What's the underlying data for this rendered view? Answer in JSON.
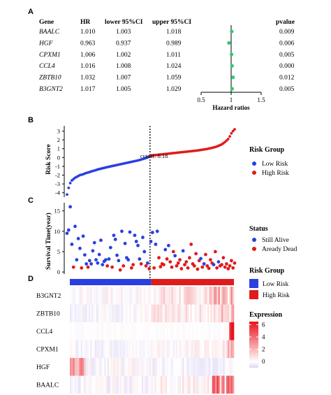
{
  "panel_labels": {
    "A": "A",
    "B": "B",
    "C": "C",
    "D": "D"
  },
  "chart_data": [
    {
      "type": "table",
      "panel": "A",
      "columns": [
        "Gene",
        "HR",
        "lower 95%CI",
        "upper 95%CI",
        "pvalue"
      ],
      "rows": [
        {
          "gene": "BAALC",
          "hr": "1.010",
          "lower": "1.003",
          "upper": "1.018",
          "pvalue": "0.009"
        },
        {
          "gene": "HGF",
          "hr": "0.963",
          "lower": "0.937",
          "upper": "0.989",
          "pvalue": "0.006"
        },
        {
          "gene": "CPXM1",
          "hr": "1.006",
          "lower": "1.002",
          "upper": "1.011",
          "pvalue": "0.005"
        },
        {
          "gene": "CCL4",
          "hr": "1.016",
          "lower": "1.008",
          "upper": "1.024",
          "pvalue": "0.000"
        },
        {
          "gene": "ZBTB10",
          "hr": "1.032",
          "lower": "1.007",
          "upper": "1.059",
          "pvalue": "0.012"
        },
        {
          "gene": "B3GNT2",
          "hr": "1.017",
          "lower": "1.005",
          "upper": "1.029",
          "pvalue": "0.005"
        }
      ],
      "forest": {
        "xlabel": "Hazard ratios",
        "xlim": [
          0.5,
          1.5
        ],
        "ticks": [
          "0.5",
          "1",
          "1.5"
        ],
        "point_color": "#2ecc71"
      }
    },
    {
      "type": "scatter",
      "panel": "B",
      "ylabel": "Risk Score",
      "ylim": [
        -4.5,
        3.6
      ],
      "yticks": [
        "-4",
        "-3",
        "-2",
        "-1",
        "0",
        "1",
        "2",
        "3"
      ],
      "cutoff_label": "cutoff: 0.18",
      "cutoff_value": 0.18,
      "n_low": 52,
      "n_high": 53,
      "low_values": [
        -4.2,
        -3.45,
        -2.9,
        -2.6,
        -2.45,
        -2.3,
        -2.2,
        -2.1,
        -2.0,
        -1.95,
        -1.9,
        -1.82,
        -1.75,
        -1.7,
        -1.65,
        -1.58,
        -1.52,
        -1.48,
        -1.42,
        -1.36,
        -1.31,
        -1.27,
        -1.22,
        -1.18,
        -1.13,
        -1.09,
        -1.05,
        -1.01,
        -0.97,
        -0.93,
        -0.89,
        -0.85,
        -0.81,
        -0.77,
        -0.73,
        -0.69,
        -0.65,
        -0.61,
        -0.57,
        -0.53,
        -0.49,
        -0.45,
        -0.41,
        -0.37,
        -0.33,
        -0.28,
        -0.23,
        -0.17,
        -0.11,
        -0.05,
        0.02,
        0.1
      ],
      "high_values": [
        0.18,
        0.22,
        0.25,
        0.28,
        0.3,
        0.32,
        0.34,
        0.36,
        0.38,
        0.4,
        0.42,
        0.44,
        0.46,
        0.48,
        0.5,
        0.52,
        0.54,
        0.56,
        0.58,
        0.6,
        0.62,
        0.64,
        0.66,
        0.68,
        0.7,
        0.72,
        0.74,
        0.76,
        0.78,
        0.8,
        0.83,
        0.86,
        0.89,
        0.92,
        0.95,
        0.98,
        1.02,
        1.06,
        1.1,
        1.15,
        1.2,
        1.26,
        1.33,
        1.41,
        1.5,
        1.62,
        1.76,
        1.92,
        2.1,
        2.4,
        2.75,
        3.0,
        3.2
      ],
      "legend": {
        "title": "Risk Group",
        "items": [
          "Low Risk",
          "High Risk"
        ]
      },
      "colors": {
        "low": "#2a3fe0",
        "high": "#e01b1b"
      }
    },
    {
      "type": "scatter",
      "panel": "C",
      "ylabel": "Survival Time(year)",
      "ylim": [
        -0.5,
        17
      ],
      "yticks": [
        "0",
        "5",
        "10",
        "15"
      ],
      "points": [
        {
          "i": 0,
          "y": 9.5,
          "s": "alive"
        },
        {
          "i": 1,
          "y": 10.3,
          "s": "alive"
        },
        {
          "i": 2,
          "y": 16.0,
          "s": "alive"
        },
        {
          "i": 3,
          "y": 6.8,
          "s": "alive"
        },
        {
          "i": 4,
          "y": 1.2,
          "s": "dead"
        },
        {
          "i": 5,
          "y": 11.2,
          "s": "alive"
        },
        {
          "i": 6,
          "y": 3.0,
          "s": "alive"
        },
        {
          "i": 7,
          "y": 8.2,
          "s": "alive"
        },
        {
          "i": 8,
          "y": 5.8,
          "s": "alive"
        },
        {
          "i": 9,
          "y": 1.0,
          "s": "dead"
        },
        {
          "i": 10,
          "y": 8.8,
          "s": "alive"
        },
        {
          "i": 11,
          "y": 4.2,
          "s": "alive"
        },
        {
          "i": 12,
          "y": 2.0,
          "s": "alive"
        },
        {
          "i": 13,
          "y": 1.2,
          "s": "dead"
        },
        {
          "i": 14,
          "y": 2.8,
          "s": "alive"
        },
        {
          "i": 15,
          "y": 2.0,
          "s": "alive"
        },
        {
          "i": 16,
          "y": 5.2,
          "s": "alive"
        },
        {
          "i": 17,
          "y": 7.2,
          "s": "alive"
        },
        {
          "i": 18,
          "y": 3.0,
          "s": "alive"
        },
        {
          "i": 19,
          "y": 2.2,
          "s": "alive"
        },
        {
          "i": 20,
          "y": 4.3,
          "s": "alive"
        },
        {
          "i": 21,
          "y": 7.8,
          "s": "alive"
        },
        {
          "i": 22,
          "y": 1.8,
          "s": "alive"
        },
        {
          "i": 23,
          "y": 2.6,
          "s": "alive"
        },
        {
          "i": 24,
          "y": 3.0,
          "s": "alive"
        },
        {
          "i": 25,
          "y": 1.5,
          "s": "dead"
        },
        {
          "i": 26,
          "y": 3.2,
          "s": "alive"
        },
        {
          "i": 27,
          "y": 6.0,
          "s": "alive"
        },
        {
          "i": 28,
          "y": 1.2,
          "s": "dead"
        },
        {
          "i": 29,
          "y": 9.0,
          "s": "alive"
        },
        {
          "i": 30,
          "y": 8.0,
          "s": "alive"
        },
        {
          "i": 31,
          "y": 4.1,
          "s": "alive"
        },
        {
          "i": 32,
          "y": 2.8,
          "s": "alive"
        },
        {
          "i": 33,
          "y": 0.5,
          "s": "dead"
        },
        {
          "i": 34,
          "y": 10.0,
          "s": "alive"
        },
        {
          "i": 35,
          "y": 1.5,
          "s": "dead"
        },
        {
          "i": 36,
          "y": 7.0,
          "s": "alive"
        },
        {
          "i": 37,
          "y": 3.5,
          "s": "alive"
        },
        {
          "i": 38,
          "y": 3.0,
          "s": "alive"
        },
        {
          "i": 39,
          "y": 9.8,
          "s": "alive"
        },
        {
          "i": 40,
          "y": 1.0,
          "s": "dead"
        },
        {
          "i": 41,
          "y": 1.8,
          "s": "dead"
        },
        {
          "i": 42,
          "y": 9.0,
          "s": "alive"
        },
        {
          "i": 43,
          "y": 7.5,
          "s": "alive"
        },
        {
          "i": 44,
          "y": 6.5,
          "s": "alive"
        },
        {
          "i": 45,
          "y": 3.2,
          "s": "alive"
        },
        {
          "i": 46,
          "y": 2.0,
          "s": "dead"
        },
        {
          "i": 47,
          "y": 8.5,
          "s": "alive"
        },
        {
          "i": 48,
          "y": 5.0,
          "s": "alive"
        },
        {
          "i": 49,
          "y": 1.5,
          "s": "dead"
        },
        {
          "i": 50,
          "y": 2.2,
          "s": "alive"
        },
        {
          "i": 51,
          "y": 0.8,
          "s": "dead"
        },
        {
          "i": 52,
          "y": 7.5,
          "s": "alive"
        },
        {
          "i": 53,
          "y": 9.7,
          "s": "alive"
        },
        {
          "i": 54,
          "y": 1.0,
          "s": "dead"
        },
        {
          "i": 55,
          "y": 6.8,
          "s": "alive"
        },
        {
          "i": 56,
          "y": 10.0,
          "s": "alive"
        },
        {
          "i": 57,
          "y": 3.5,
          "s": "dead"
        },
        {
          "i": 58,
          "y": 1.3,
          "s": "dead"
        },
        {
          "i": 59,
          "y": 2.0,
          "s": "dead"
        },
        {
          "i": 60,
          "y": 1.8,
          "s": "dead"
        },
        {
          "i": 61,
          "y": 5.5,
          "s": "alive"
        },
        {
          "i": 62,
          "y": 3.2,
          "s": "dead"
        },
        {
          "i": 63,
          "y": 6.5,
          "s": "alive"
        },
        {
          "i": 64,
          "y": 2.5,
          "s": "dead"
        },
        {
          "i": 65,
          "y": 1.2,
          "s": "dead"
        },
        {
          "i": 66,
          "y": 5.0,
          "s": "dead"
        },
        {
          "i": 67,
          "y": 4.0,
          "s": "alive"
        },
        {
          "i": 68,
          "y": 1.5,
          "s": "dead"
        },
        {
          "i": 69,
          "y": 2.2,
          "s": "dead"
        },
        {
          "i": 70,
          "y": 3.0,
          "s": "dead"
        },
        {
          "i": 71,
          "y": 0.8,
          "s": "dead"
        },
        {
          "i": 72,
          "y": 5.2,
          "s": "alive"
        },
        {
          "i": 73,
          "y": 1.8,
          "s": "dead"
        },
        {
          "i": 74,
          "y": 2.5,
          "s": "dead"
        },
        {
          "i": 75,
          "y": 1.0,
          "s": "dead"
        },
        {
          "i": 76,
          "y": 3.5,
          "s": "dead"
        },
        {
          "i": 77,
          "y": 6.8,
          "s": "dead"
        },
        {
          "i": 78,
          "y": 2.0,
          "s": "dead"
        },
        {
          "i": 79,
          "y": 1.5,
          "s": "dead"
        },
        {
          "i": 80,
          "y": 4.5,
          "s": "dead"
        },
        {
          "i": 81,
          "y": 0.7,
          "s": "dead"
        },
        {
          "i": 82,
          "y": 2.8,
          "s": "dead"
        },
        {
          "i": 83,
          "y": 3.3,
          "s": "alive"
        },
        {
          "i": 84,
          "y": 1.2,
          "s": "dead"
        },
        {
          "i": 85,
          "y": 2.0,
          "s": "alive"
        },
        {
          "i": 86,
          "y": 4.3,
          "s": "dead"
        },
        {
          "i": 87,
          "y": 1.5,
          "s": "dead"
        },
        {
          "i": 88,
          "y": 0.9,
          "s": "dead"
        },
        {
          "i": 89,
          "y": 3.0,
          "s": "dead"
        },
        {
          "i": 90,
          "y": 2.2,
          "s": "dead"
        },
        {
          "i": 91,
          "y": 1.8,
          "s": "alive"
        },
        {
          "i": 92,
          "y": 5.0,
          "s": "dead"
        },
        {
          "i": 93,
          "y": 1.0,
          "s": "dead"
        },
        {
          "i": 94,
          "y": 2.5,
          "s": "alive"
        },
        {
          "i": 95,
          "y": 1.5,
          "s": "dead"
        },
        {
          "i": 96,
          "y": 1.8,
          "s": "dead"
        },
        {
          "i": 97,
          "y": 3.5,
          "s": "dead"
        },
        {
          "i": 98,
          "y": 1.2,
          "s": "dead"
        },
        {
          "i": 99,
          "y": 2.0,
          "s": "dead"
        },
        {
          "i": 100,
          "y": 0.8,
          "s": "dead"
        },
        {
          "i": 101,
          "y": 1.5,
          "s": "dead"
        },
        {
          "i": 102,
          "y": 2.8,
          "s": "dead"
        },
        {
          "i": 103,
          "y": 1.0,
          "s": "dead"
        },
        {
          "i": 104,
          "y": 2.2,
          "s": "dead"
        }
      ],
      "legend": {
        "title": "Status",
        "items": [
          "Still Alive",
          "Aready Dead"
        ]
      },
      "colors": {
        "alive": "#2a3fe0",
        "dead": "#e01b1b"
      }
    },
    {
      "type": "heatmap",
      "panel": "D",
      "rows": [
        "B3GNT2",
        "ZBTB10",
        "CCL4",
        "CPXM1",
        "HGF",
        "BAALC"
      ],
      "n_columns": 105,
      "group_bar": {
        "low_count": 52,
        "high_count": 53
      },
      "legend_group": {
        "title": "Risk Group",
        "items": [
          "Low Risk",
          "High Risk"
        ]
      },
      "legend_scale": {
        "title": "Expression",
        "ticks": [
          "6",
          "4",
          "2",
          "0"
        ],
        "range": [
          -1,
          6.5
        ]
      },
      "colors": {
        "low": "#2a3fe0",
        "high": "#e01b1b",
        "scale_low": "#dcd6f5",
        "scale_mid": "#ffffff",
        "scale_high": "#e8121b"
      }
    }
  ]
}
